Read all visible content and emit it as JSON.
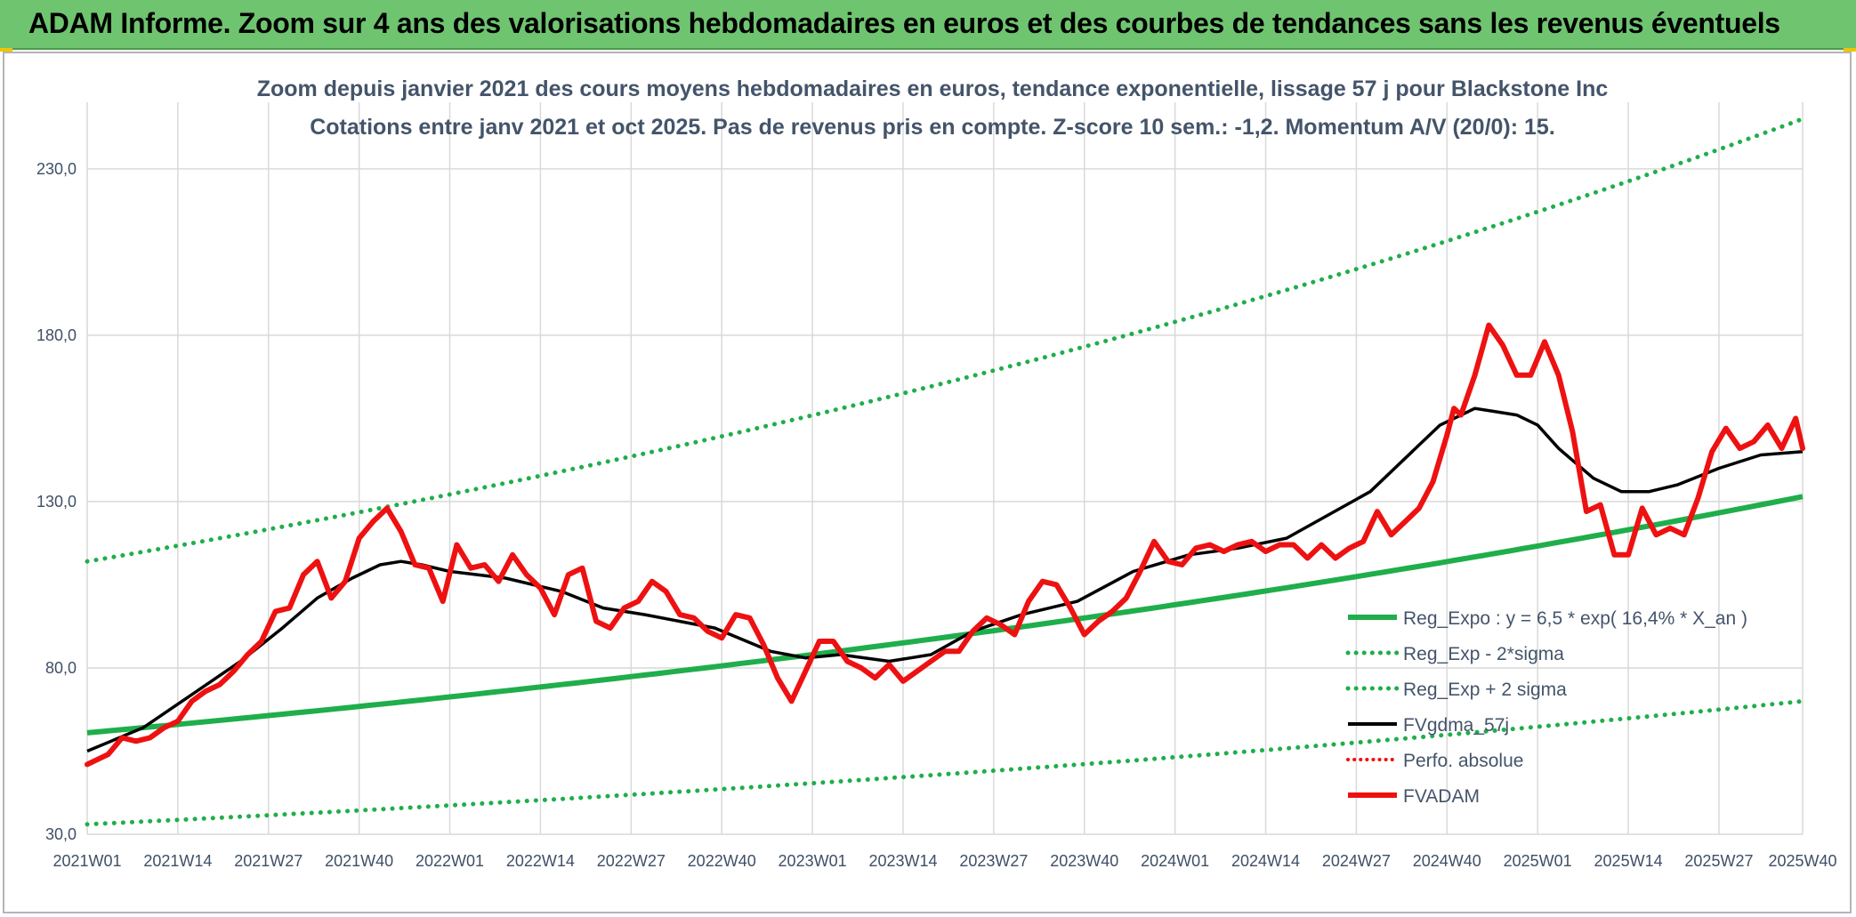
{
  "header": {
    "title": "ADAM Informe. Zoom sur 4 ans des valorisations hebdomadaires en euros et des courbes de tendances sans les revenus éventuels"
  },
  "colors": {
    "banner": "#6fc470",
    "reg_expo": "#1fae4b",
    "fvgdma": "#000000",
    "fvadam": "#ee1111",
    "perfo": "#ee1111",
    "grid": "#d9d9d9"
  },
  "chart_data": {
    "type": "line",
    "title": "Zoom depuis janvier 2021 des cours moyens hebdomadaires en euros, tendance exponentielle, lissage 57 j pour Blackstone Inc",
    "subtitle": "Cotations entre janv 2021 et oct 2025. Pas de revenus pris en compte. Z-score 10 sem.: -1,2. Momentum A/V (20/0): 15.",
    "xlabel": "",
    "ylabel": "",
    "ylim": [
      30,
      250
    ],
    "yticks": [
      30,
      80,
      130,
      180,
      230
    ],
    "ytick_labels": [
      "30,0",
      "80,0",
      "130,0",
      "180,0",
      "230,0"
    ],
    "x_range_weeks": [
      0,
      246
    ],
    "xticks": [
      0,
      13,
      26,
      39,
      52,
      65,
      78,
      91,
      104,
      117,
      130,
      143,
      156,
      169,
      182,
      195,
      208,
      221,
      234,
      246
    ],
    "xtick_labels": [
      "2021W01",
      "2021W14",
      "2021W27",
      "2021W40",
      "2022W01",
      "2022W14",
      "2022W27",
      "2022W40",
      "2023W01",
      "2023W14",
      "2023W27",
      "2023W40",
      "2024W01",
      "2024W14",
      "2024W27",
      "2024W40",
      "2025W01",
      "2025W14",
      "2025W27",
      "2025W40"
    ],
    "grid": true,
    "legend_position": "bottom-right",
    "legend": [
      {
        "key": "reg",
        "label": "Reg_Expo : y = 6,5 * exp( 16,4% *  X_an )",
        "style": "solid-thick-green"
      },
      {
        "key": "low",
        "label": "Reg_Exp - 2*sigma",
        "style": "dotted-green"
      },
      {
        "key": "high",
        "label": "Reg_Exp + 2 sigma",
        "style": "dotted-green"
      },
      {
        "key": "fvg",
        "label": "FVgdma_57j",
        "style": "solid-black"
      },
      {
        "key": "perfo",
        "label": "Perfo. absolue",
        "style": "dotted-red"
      },
      {
        "key": "fva",
        "label": "FVADAM",
        "style": "solid-thick-red"
      }
    ],
    "series": [
      {
        "name": "Reg_Expo",
        "x": [
          0,
          246
        ],
        "curve": "exponential",
        "y_start": 60.5,
        "y_end": 131.5
      },
      {
        "name": "Reg_Exp + 2 sigma",
        "x": [
          0,
          246
        ],
        "curve": "exponential",
        "y_start": 112,
        "y_end": 245
      },
      {
        "name": "Reg_Exp - 2*sigma",
        "x": [
          0,
          246
        ],
        "curve": "exponential",
        "y_start": 33,
        "y_end": 70
      },
      {
        "name": "FVgdma_57j",
        "x": [
          0,
          8,
          15,
          22,
          28,
          33,
          38,
          42,
          45,
          48,
          52,
          60,
          68,
          74,
          80,
          90,
          98,
          103,
          108,
          115,
          121,
          127,
          134,
          142,
          150,
          158,
          165,
          172,
          178,
          184,
          190,
          194,
          199,
          202,
          205,
          208,
          211,
          216,
          220,
          224,
          228,
          234,
          240,
          246
        ],
        "values": [
          55,
          62,
          72,
          82,
          92,
          101,
          107,
          111,
          112,
          111,
          109,
          107,
          103,
          98,
          96,
          92,
          85,
          83,
          84,
          82,
          84,
          91,
          96,
          100,
          109,
          114,
          116,
          119,
          126,
          133,
          145,
          153,
          158,
          157,
          156,
          153,
          146,
          137,
          133,
          133,
          135,
          140,
          144,
          145
        ]
      },
      {
        "name": "FVADAM",
        "x": [
          0,
          3,
          5,
          7,
          9,
          11,
          13,
          15,
          17,
          19,
          21,
          23,
          25,
          27,
          29,
          31,
          33,
          35,
          37,
          39,
          41,
          43,
          45,
          47,
          49,
          51,
          53,
          55,
          57,
          59,
          61,
          63,
          65,
          67,
          69,
          71,
          73,
          75,
          77,
          79,
          81,
          83,
          85,
          87,
          89,
          91,
          93,
          95,
          97,
          99,
          101,
          103,
          105,
          107,
          109,
          111,
          113,
          115,
          117,
          119,
          121,
          123,
          125,
          127,
          129,
          131,
          133,
          135,
          137,
          139,
          141,
          143,
          145,
          147,
          149,
          151,
          153,
          155,
          157,
          159,
          161,
          163,
          165,
          167,
          169,
          171,
          173,
          175,
          177,
          179,
          181,
          183,
          185,
          187,
          189,
          191,
          193,
          195,
          196,
          197,
          199,
          201,
          203,
          205,
          207,
          209,
          211,
          213,
          215,
          217,
          219,
          221,
          223,
          225,
          227,
          229,
          231,
          233,
          235,
          237,
          239,
          241,
          243,
          245,
          246
        ],
        "values": [
          51,
          54,
          59,
          58,
          59,
          62,
          64,
          70,
          73,
          75,
          79,
          84,
          88,
          97,
          98,
          108,
          112,
          101,
          106,
          119,
          124,
          128,
          121,
          111,
          110,
          100,
          117,
          110,
          111,
          106,
          114,
          108,
          104,
          96,
          108,
          110,
          94,
          92,
          98,
          100,
          106,
          103,
          96,
          95,
          91,
          89,
          96,
          95,
          87,
          77,
          70,
          79,
          88,
          88,
          82,
          80,
          77,
          81,
          76,
          79,
          82,
          85,
          85,
          91,
          95,
          93,
          90,
          100,
          106,
          105,
          98,
          90,
          94,
          97,
          101,
          109,
          118,
          112,
          111,
          116,
          117,
          115,
          117,
          118,
          115,
          117,
          117,
          113,
          117,
          113,
          116,
          118,
          127,
          120,
          124,
          128,
          136,
          150,
          158,
          156,
          168,
          183,
          177,
          168,
          168,
          178,
          168,
          151,
          127,
          129,
          114,
          114,
          128,
          120,
          122,
          120,
          131,
          145,
          152,
          146,
          148,
          153,
          146,
          155,
          146
        ]
      }
    ]
  }
}
